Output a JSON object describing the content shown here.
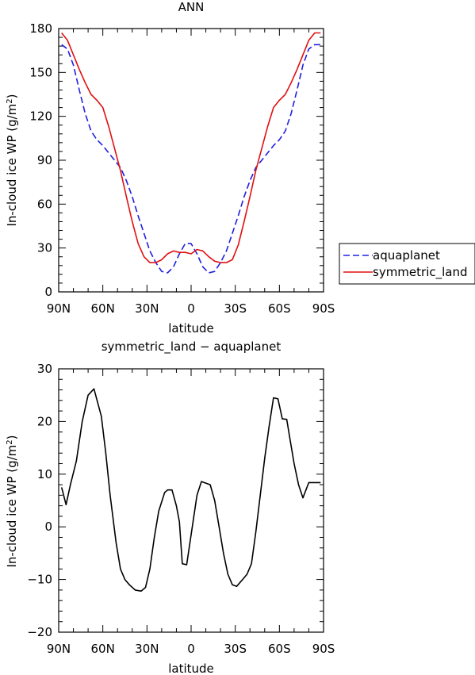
{
  "chart_data": [
    {
      "type": "line",
      "title": "ANN",
      "xlabel": "latitude",
      "ylabel": "In-cloud ice WP (g/m",
      "ylabel_sup": "2",
      "ylabel_end": ")",
      "xlim": [
        -90,
        90
      ],
      "ylim": [
        0,
        180
      ],
      "x_ticks": [
        -90,
        -60,
        -30,
        0,
        30,
        60,
        90
      ],
      "x_tick_labels": [
        "90N",
        "60N",
        "30N",
        "0",
        "30S",
        "60S",
        "90S"
      ],
      "y_ticks": [
        0,
        30,
        60,
        90,
        120,
        150,
        180
      ],
      "y_tick_labels": [
        "0",
        "30",
        "60",
        "90",
        "120",
        "150",
        "180"
      ],
      "legend_position": "right-outside",
      "series": [
        {
          "name": "aquaplanet",
          "color": "#2020e0",
          "dash": "dashed",
          "x": [
            -88,
            -84,
            -80,
            -76,
            -72,
            -68,
            -64,
            -60,
            -56,
            -52,
            -48,
            -44,
            -40,
            -36,
            -32,
            -28,
            -24,
            -20,
            -16,
            -12,
            -8,
            -4,
            0,
            4,
            8,
            12,
            16,
            20,
            24,
            28,
            32,
            36,
            40,
            44,
            48,
            52,
            56,
            60,
            64,
            68,
            72,
            76,
            80,
            84,
            88
          ],
          "values": [
            169,
            166,
            155,
            138,
            122,
            110,
            104,
            100,
            95,
            90,
            85,
            76,
            65,
            52,
            40,
            28,
            20,
            14,
            13,
            17,
            26,
            33,
            33,
            26,
            17,
            13,
            14,
            20,
            28,
            40,
            52,
            65,
            76,
            85,
            90,
            95,
            100,
            104,
            110,
            122,
            138,
            155,
            166,
            169,
            169
          ]
        },
        {
          "name": "symmetric_land",
          "color": "#e01010",
          "dash": "solid",
          "x": [
            -88,
            -84,
            -80,
            -76,
            -72,
            -68,
            -64,
            -60,
            -56,
            -52,
            -48,
            -44,
            -40,
            -36,
            -32,
            -28,
            -24,
            -20,
            -16,
            -12,
            -8,
            -4,
            0,
            4,
            8,
            12,
            16,
            20,
            24,
            28,
            32,
            36,
            40,
            44,
            48,
            52,
            56,
            60,
            64,
            68,
            72,
            76,
            80,
            84,
            88
          ],
          "values": [
            177,
            172,
            162,
            152,
            143,
            135,
            131,
            126,
            113,
            98,
            83,
            65,
            48,
            33,
            24,
            20,
            20,
            22,
            26,
            28,
            27,
            27,
            26,
            29,
            28,
            24,
            21,
            20,
            20,
            22,
            32,
            48,
            65,
            83,
            98,
            113,
            126,
            131,
            135,
            143,
            152,
            162,
            172,
            177,
            177
          ]
        }
      ]
    },
    {
      "type": "line",
      "title": "symmetric_land − aquaplanet",
      "xlabel": "latitude",
      "ylabel": "In-cloud ice WP (g/m",
      "ylabel_sup": "2",
      "ylabel_end": ")",
      "xlim": [
        -90,
        90
      ],
      "ylim": [
        -20,
        30
      ],
      "x_ticks": [
        -90,
        -60,
        -30,
        0,
        30,
        60,
        90
      ],
      "x_tick_labels": [
        "90N",
        "60N",
        "30N",
        "0",
        "30S",
        "60S",
        "90S"
      ],
      "y_ticks": [
        -20,
        -10,
        0,
        10,
        20,
        30
      ],
      "y_tick_labels": [
        "−20",
        "−10",
        "0",
        "10",
        "20",
        "30"
      ],
      "series": [
        {
          "color": "#000000",
          "dash": "solid",
          "x": [
            -88,
            -85,
            -82,
            -78,
            -74,
            -70,
            -66,
            -61,
            -58,
            -55,
            -51,
            -48,
            -45,
            -42,
            -38,
            -34,
            -31,
            -28,
            -25,
            -22,
            -18,
            -16,
            -13,
            -10,
            -8,
            -6,
            -3,
            0,
            4,
            7,
            10,
            13,
            16,
            19,
            22,
            25,
            28,
            31,
            35,
            38,
            41,
            44,
            47,
            50,
            53,
            56,
            59,
            62,
            65,
            67,
            70,
            73,
            76,
            80,
            84,
            88
          ],
          "values": [
            7.5,
            4.2,
            8,
            12.5,
            20,
            25,
            26.2,
            21,
            14,
            6,
            -3,
            -8,
            -10,
            -11,
            -12,
            -12.2,
            -11.5,
            -8,
            -2,
            3,
            6.5,
            7,
            7,
            4,
            1,
            -7,
            -7.2,
            -1.5,
            6,
            8.6,
            8.3,
            8,
            5,
            0,
            -5,
            -9,
            -11,
            -11.3,
            -10,
            -9,
            -7,
            -1,
            6,
            13,
            19,
            24.5,
            24.3,
            20.5,
            20.4,
            17,
            12,
            8,
            5.5,
            8.4,
            8.4,
            8.4
          ]
        }
      ]
    }
  ]
}
